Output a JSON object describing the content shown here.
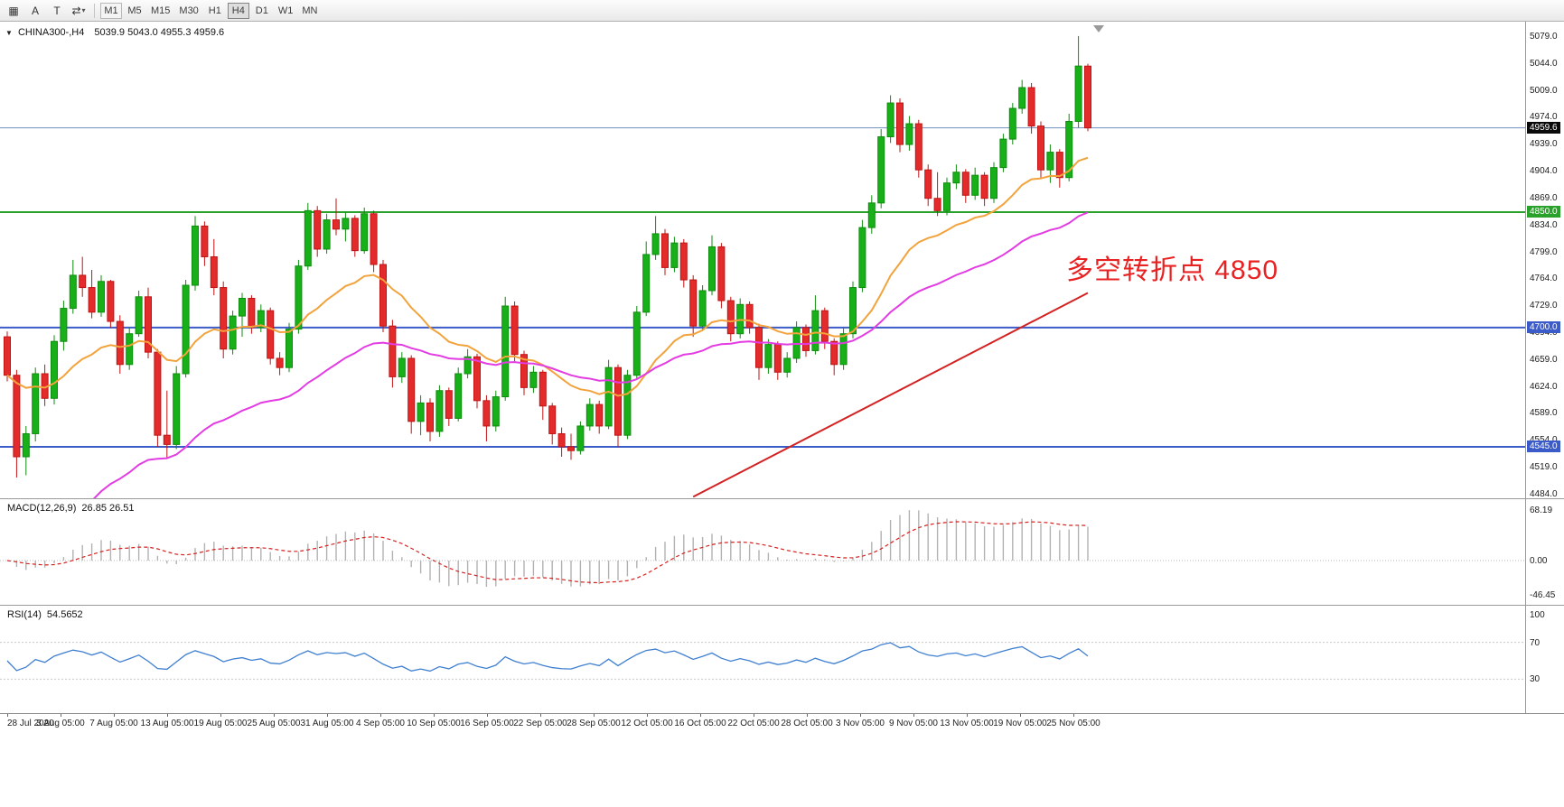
{
  "toolbar": {
    "tools": [
      {
        "name": "chart-windows",
        "glyph": "▦"
      },
      {
        "name": "annotate-a",
        "glyph": "A"
      },
      {
        "name": "text-tool",
        "glyph": "T"
      },
      {
        "name": "cycle-symbols",
        "glyph": "⇄",
        "has_dropdown": true
      }
    ],
    "chevron": "▾",
    "timeframes": [
      "M1",
      "M5",
      "M15",
      "M30",
      "H1",
      "H4",
      "D1",
      "W1",
      "MN"
    ],
    "active_timeframe": "H4",
    "boxed_timeframe": "M1"
  },
  "chart_header": {
    "dropdown_icon": "▼",
    "symbol": "CHINA300-,H4",
    "ohlc": "5039.9 5043.0 4955.3 4959.6"
  },
  "annotation": {
    "text": "多空转折点 4850",
    "color": "#e82222"
  },
  "price_axis": {
    "ticks": [
      "5079.0",
      "5044.0",
      "5009.0",
      "4974.0",
      "4939.0",
      "4904.0",
      "4869.0",
      "4834.0",
      "4799.0",
      "4764.0",
      "4729.0",
      "4694.0",
      "4659.0",
      "4624.0",
      "4589.0",
      "4554.0",
      "4519.0",
      "4484.0"
    ]
  },
  "hlines": [
    {
      "price": 4959.6,
      "label": "4959.6",
      "line_color": "#7290bd",
      "badge_bg": "#0a0a0a",
      "width": 1
    },
    {
      "price": 4850.0,
      "label": "4850.0",
      "line_color": "#2aa12a",
      "badge_bg": "#2aa12a",
      "width": 2
    },
    {
      "price": 4700.0,
      "label": "4700.0",
      "line_color": "#3b5bc9",
      "badge_bg": "#3b5bc9",
      "width": 2
    },
    {
      "price": 4545.0,
      "label": "4545.0",
      "line_color": "#3b5bc9",
      "badge_bg": "#3b5bc9",
      "width": 2
    }
  ],
  "chart_data": {
    "type": "candlestick",
    "symbol": "CHINA300",
    "timeframe": "H4",
    "last_quote": {
      "open": 5039.9,
      "high": 5043.0,
      "low": 4955.3,
      "close": 4959.6
    },
    "support_resistance": [
      4850.0,
      4700.0,
      4545.0
    ],
    "style": {
      "up": "#18b018",
      "up_border": "#0e8c0e",
      "down": "#e32b2b",
      "down_border": "#bf1414"
    },
    "candles": [
      [
        4688,
        4695,
        4630,
        4638
      ],
      [
        4638,
        4645,
        4505,
        4532
      ],
      [
        4532,
        4572,
        4508,
        4562
      ],
      [
        4562,
        4648,
        4552,
        4640
      ],
      [
        4640,
        4652,
        4598,
        4608
      ],
      [
        4608,
        4690,
        4600,
        4682
      ],
      [
        4682,
        4735,
        4670,
        4725
      ],
      [
        4725,
        4788,
        4718,
        4768
      ],
      [
        4768,
        4792,
        4740,
        4752
      ],
      [
        4752,
        4775,
        4712,
        4720
      ],
      [
        4720,
        4768,
        4714,
        4760
      ],
      [
        4760,
        4762,
        4700,
        4708
      ],
      [
        4708,
        4716,
        4640,
        4652
      ],
      [
        4652,
        4700,
        4645,
        4692
      ],
      [
        4692,
        4748,
        4688,
        4740
      ],
      [
        4740,
        4752,
        4660,
        4668
      ],
      [
        4668,
        4672,
        4545,
        4560
      ],
      [
        4560,
        4618,
        4530,
        4548
      ],
      [
        4548,
        4650,
        4542,
        4640
      ],
      [
        4640,
        4762,
        4635,
        4755
      ],
      [
        4755,
        4845,
        4748,
        4832
      ],
      [
        4832,
        4838,
        4780,
        4792
      ],
      [
        4792,
        4815,
        4742,
        4752
      ],
      [
        4752,
        4760,
        4660,
        4672
      ],
      [
        4672,
        4722,
        4665,
        4715
      ],
      [
        4715,
        4745,
        4688,
        4738
      ],
      [
        4738,
        4742,
        4692,
        4700
      ],
      [
        4700,
        4730,
        4694,
        4722
      ],
      [
        4722,
        4726,
        4652,
        4660
      ],
      [
        4660,
        4668,
        4638,
        4648
      ],
      [
        4648,
        4706,
        4642,
        4698
      ],
      [
        4698,
        4788,
        4692,
        4780
      ],
      [
        4780,
        4862,
        4775,
        4852
      ],
      [
        4852,
        4858,
        4792,
        4802
      ],
      [
        4802,
        4848,
        4796,
        4840
      ],
      [
        4840,
        4868,
        4820,
        4828
      ],
      [
        4828,
        4850,
        4812,
        4842
      ],
      [
        4842,
        4846,
        4792,
        4800
      ],
      [
        4800,
        4856,
        4796,
        4848
      ],
      [
        4848,
        4852,
        4772,
        4782
      ],
      [
        4782,
        4788,
        4694,
        4702
      ],
      [
        4702,
        4710,
        4622,
        4636
      ],
      [
        4636,
        4668,
        4628,
        4660
      ],
      [
        4660,
        4664,
        4562,
        4578
      ],
      [
        4578,
        4612,
        4560,
        4602
      ],
      [
        4602,
        4608,
        4552,
        4565
      ],
      [
        4565,
        4625,
        4558,
        4618
      ],
      [
        4618,
        4622,
        4572,
        4582
      ],
      [
        4582,
        4648,
        4578,
        4640
      ],
      [
        4640,
        4672,
        4634,
        4662
      ],
      [
        4662,
        4666,
        4595,
        4605
      ],
      [
        4605,
        4612,
        4552,
        4572
      ],
      [
        4572,
        4618,
        4565,
        4610
      ],
      [
        4610,
        4740,
        4605,
        4728
      ],
      [
        4728,
        4734,
        4655,
        4665
      ],
      [
        4665,
        4670,
        4612,
        4622
      ],
      [
        4622,
        4650,
        4615,
        4642
      ],
      [
        4642,
        4645,
        4580,
        4598
      ],
      [
        4598,
        4602,
        4548,
        4562
      ],
      [
        4562,
        4570,
        4532,
        4545
      ],
      [
        4545,
        4562,
        4528,
        4540
      ],
      [
        4540,
        4578,
        4535,
        4572
      ],
      [
        4572,
        4608,
        4566,
        4600
      ],
      [
        4600,
        4605,
        4562,
        4572
      ],
      [
        4572,
        4658,
        4568,
        4648
      ],
      [
        4648,
        4652,
        4545,
        4560
      ],
      [
        4560,
        4645,
        4555,
        4638
      ],
      [
        4638,
        4728,
        4632,
        4720
      ],
      [
        4720,
        4812,
        4715,
        4795
      ],
      [
        4795,
        4845,
        4788,
        4822
      ],
      [
        4822,
        4828,
        4768,
        4778
      ],
      [
        4778,
        4818,
        4772,
        4810
      ],
      [
        4810,
        4815,
        4752,
        4762
      ],
      [
        4762,
        4768,
        4688,
        4702
      ],
      [
        4702,
        4755,
        4696,
        4748
      ],
      [
        4748,
        4820,
        4742,
        4805
      ],
      [
        4805,
        4810,
        4725,
        4735
      ],
      [
        4735,
        4740,
        4682,
        4692
      ],
      [
        4692,
        4738,
        4686,
        4730
      ],
      [
        4730,
        4734,
        4692,
        4700
      ],
      [
        4700,
        4705,
        4632,
        4648
      ],
      [
        4648,
        4685,
        4640,
        4678
      ],
      [
        4678,
        4682,
        4632,
        4642
      ],
      [
        4642,
        4668,
        4635,
        4660
      ],
      [
        4660,
        4708,
        4654,
        4700
      ],
      [
        4700,
        4704,
        4662,
        4670
      ],
      [
        4670,
        4742,
        4665,
        4722
      ],
      [
        4722,
        4726,
        4672,
        4682
      ],
      [
        4682,
        4686,
        4638,
        4652
      ],
      [
        4652,
        4700,
        4645,
        4692
      ],
      [
        4692,
        4760,
        4686,
        4752
      ],
      [
        4752,
        4840,
        4746,
        4830
      ],
      [
        4830,
        4872,
        4822,
        4862
      ],
      [
        4862,
        4958,
        4855,
        4948
      ],
      [
        4948,
        5002,
        4940,
        4992
      ],
      [
        4992,
        4998,
        4928,
        4938
      ],
      [
        4938,
        4975,
        4930,
        4965
      ],
      [
        4965,
        4970,
        4895,
        4905
      ],
      [
        4905,
        4912,
        4858,
        4868
      ],
      [
        4868,
        4902,
        4845,
        4852
      ],
      [
        4852,
        4895,
        4846,
        4888
      ],
      [
        4888,
        4912,
        4880,
        4902
      ],
      [
        4902,
        4906,
        4862,
        4872
      ],
      [
        4872,
        4908,
        4866,
        4898
      ],
      [
        4898,
        4902,
        4858,
        4868
      ],
      [
        4868,
        4915,
        4862,
        4908
      ],
      [
        4908,
        4952,
        4902,
        4945
      ],
      [
        4945,
        4992,
        4938,
        4985
      ],
      [
        4985,
        5022,
        4978,
        5012
      ],
      [
        5012,
        5018,
        4952,
        4962
      ],
      [
        4962,
        4968,
        4895,
        4905
      ],
      [
        4905,
        4938,
        4888,
        4928
      ],
      [
        4928,
        4932,
        4882,
        4895
      ],
      [
        4895,
        4978,
        4890,
        4968
      ],
      [
        4968,
        5079,
        4960,
        5040
      ],
      [
        5039.9,
        5043.0,
        4955.3,
        4959.6
      ]
    ],
    "overlays": [
      {
        "name": "ma-fast",
        "type": "ema",
        "period": 20,
        "color": "#f2a33c"
      },
      {
        "name": "ma-slow",
        "type": "ema",
        "period": 45,
        "seed": 4365,
        "color": "#e23ce2"
      },
      {
        "name": "trendline",
        "type": "line",
        "from_index": 73,
        "from_price": 4480,
        "to_index": 115,
        "to_price": 4745,
        "color": "#d42222"
      }
    ]
  },
  "macd": {
    "label": "MACD(12,26,9)",
    "values": "26.85 26.51",
    "fast": 12,
    "slow": 26,
    "signal": 9,
    "hist_color": "#b2b2b2",
    "signal_color": "#d42222",
    "axis": [
      {
        "v": 68.19,
        "label": "68.19"
      },
      {
        "v": 0,
        "label": "0.00"
      },
      {
        "v": -46.45,
        "label": "-46.45"
      }
    ]
  },
  "rsi": {
    "label": "RSI(14)",
    "value": "54.5652",
    "period": 14,
    "color": "#3f7fd0",
    "levels": [
      70,
      30
    ],
    "axis": [
      {
        "v": 100,
        "label": "100"
      },
      {
        "v": 70,
        "label": "70"
      },
      {
        "v": 30,
        "label": "30"
      }
    ]
  },
  "time_axis": {
    "labels": [
      "28 Jul 2020",
      "3 Aug 05:00",
      "7 Aug 05:00",
      "13 Aug 05:00",
      "19 Aug 05:00",
      "25 Aug 05:00",
      "31 Aug 05:00",
      "4 Sep 05:00",
      "10 Sep 05:00",
      "16 Sep 05:00",
      "22 Sep 05:00",
      "28 Sep 05:00",
      "12 Oct 05:00",
      "16 Oct 05:00",
      "22 Oct 05:00",
      "28 Oct 05:00",
      "3 Nov 05:00",
      "9 Nov 05:00",
      "13 Nov 05:00",
      "19 Nov 05:00",
      "25 Nov 05:00"
    ]
  }
}
